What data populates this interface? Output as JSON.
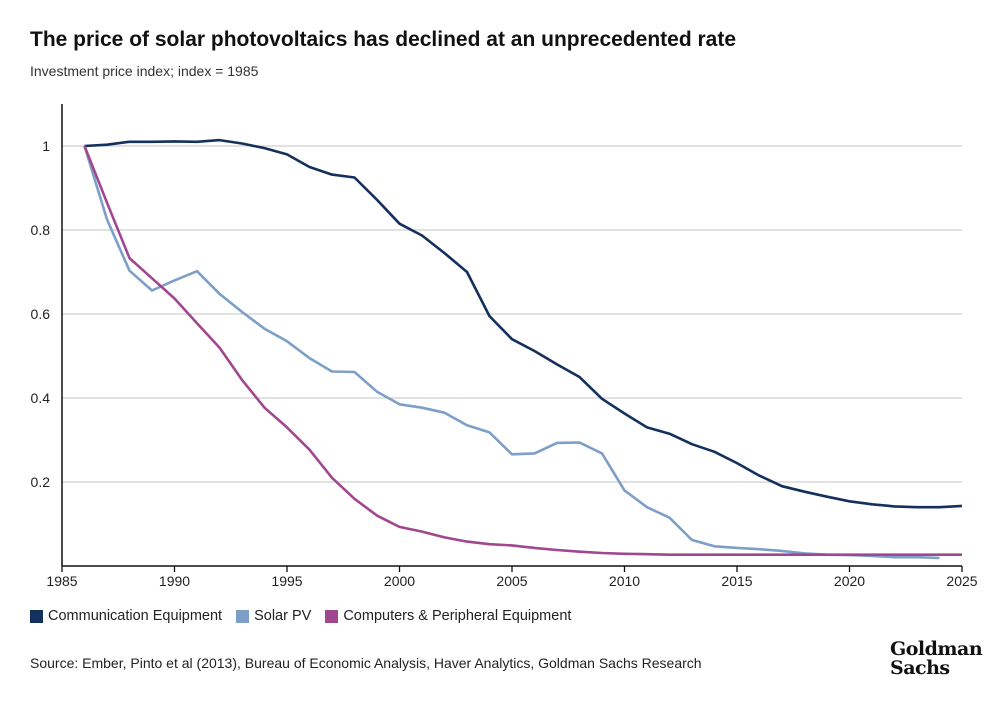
{
  "chart_data": {
    "type": "line",
    "title": "The price of solar photovoltaics has declined at an unprecedented rate",
    "subtitle": "Investment price index; index = 1985",
    "xlabel": "",
    "ylabel": "",
    "xlim": [
      1985,
      2025
    ],
    "ylim": [
      0,
      1.1
    ],
    "x_ticks": [
      "1985",
      "1990",
      "1995",
      "2000",
      "2005",
      "2010",
      "2015",
      "2020",
      "2025"
    ],
    "y_ticks": [
      "0.2",
      "0.4",
      "0.6",
      "0.8",
      "1"
    ],
    "grid": "horizontal",
    "legend_position": "bottom-left",
    "series": [
      {
        "name": "Communication Equipment",
        "color": "#14305c",
        "x": [
          1986,
          1987,
          1988,
          1989,
          1990,
          1991,
          1992,
          1993,
          1994,
          1995,
          1996,
          1997,
          1998,
          1999,
          2000,
          2001,
          2002,
          2003,
          2004,
          2005,
          2006,
          2007,
          2008,
          2009,
          2010,
          2011,
          2012,
          2013,
          2014,
          2015,
          2016,
          2017,
          2018,
          2019,
          2020,
          2021,
          2022,
          2023,
          2024,
          2025
        ],
        "values": [
          1.0,
          1.003,
          1.01,
          1.01,
          1.011,
          1.01,
          1.014,
          1.006,
          0.995,
          0.98,
          0.95,
          0.932,
          0.925,
          0.872,
          0.815,
          0.787,
          0.745,
          0.7,
          0.595,
          0.54,
          0.512,
          0.48,
          0.45,
          0.398,
          0.363,
          0.33,
          0.315,
          0.29,
          0.272,
          0.245,
          0.215,
          0.19,
          0.177,
          0.165,
          0.154,
          0.147,
          0.142,
          0.14,
          0.14,
          0.143
        ]
      },
      {
        "name": "Solar PV",
        "color": "#7d9fc7",
        "x": [
          1986,
          1987,
          1988,
          1989,
          1990,
          1991,
          1992,
          1993,
          1994,
          1995,
          1996,
          1997,
          1998,
          1999,
          2000,
          2001,
          2002,
          2003,
          2004,
          2005,
          2006,
          2007,
          2008,
          2009,
          2010,
          2011,
          2012,
          2013,
          2014,
          2015,
          2016,
          2017,
          2018,
          2019,
          2020,
          2021,
          2022,
          2023,
          2024
        ],
        "values": [
          1.0,
          0.825,
          0.703,
          0.656,
          0.68,
          0.702,
          0.648,
          0.605,
          0.565,
          0.535,
          0.495,
          0.463,
          0.462,
          0.415,
          0.385,
          0.377,
          0.365,
          0.335,
          0.318,
          0.266,
          0.268,
          0.293,
          0.294,
          0.268,
          0.18,
          0.14,
          0.115,
          0.062,
          0.047,
          0.043,
          0.04,
          0.036,
          0.03,
          0.027,
          0.026,
          0.024,
          0.021,
          0.021,
          0.019
        ]
      },
      {
        "name": "Computers & Peripheral Equipment",
        "color": "#a1478f",
        "x": [
          1986,
          1987,
          1988,
          1989,
          1990,
          1991,
          1992,
          1993,
          1994,
          1995,
          1996,
          1997,
          1998,
          1999,
          2000,
          2001,
          2002,
          2003,
          2004,
          2005,
          2006,
          2007,
          2008,
          2009,
          2010,
          2011,
          2012,
          2013,
          2014,
          2015,
          2016,
          2017,
          2018,
          2019,
          2020,
          2021,
          2022,
          2023,
          2024,
          2025
        ],
        "values": [
          1.0,
          0.865,
          0.733,
          0.685,
          0.637,
          0.578,
          0.52,
          0.443,
          0.377,
          0.33,
          0.277,
          0.21,
          0.16,
          0.12,
          0.093,
          0.082,
          0.068,
          0.058,
          0.052,
          0.049,
          0.043,
          0.038,
          0.034,
          0.031,
          0.029,
          0.028,
          0.027,
          0.027,
          0.027,
          0.027,
          0.027,
          0.027,
          0.027,
          0.027,
          0.027,
          0.027,
          0.027,
          0.027,
          0.027,
          0.027
        ]
      }
    ]
  },
  "source": "Source: Ember, Pinto et al (2013), Bureau of Economic Analysis, Haver Analytics, Goldman Sachs Research",
  "logo": {
    "line1": "Goldman",
    "line2": "Sachs"
  }
}
